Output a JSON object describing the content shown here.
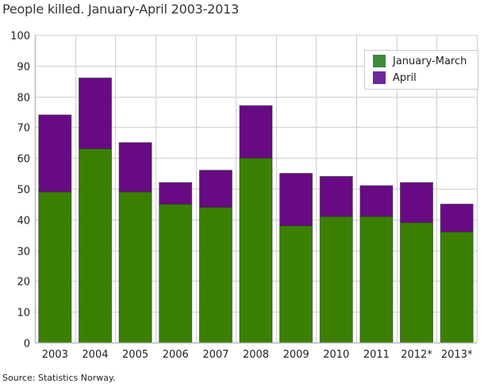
{
  "title": "People killed. January-April 2003-2013",
  "source": "Source: Statistics Norway.",
  "colors": {
    "jan_mar": "#3b8003",
    "april": "#690a85",
    "legend_jan_mar": "#3c8c3c",
    "legend_april": "#6a2a9a",
    "grid": "#d0d0d0"
  },
  "legend": [
    {
      "label": "January-March",
      "color": "#3c8c3c"
    },
    {
      "label": "April",
      "color": "#6a2a9a"
    }
  ],
  "chart_data": {
    "type": "bar",
    "stacked": true,
    "title": "People killed. January-April 2003-2013",
    "xlabel": "",
    "ylabel": "",
    "ylim": [
      0,
      100
    ],
    "yticks": [
      0,
      10,
      20,
      30,
      40,
      50,
      60,
      70,
      80,
      90,
      100
    ],
    "grid": true,
    "legend_position": "top-right",
    "categories": [
      "2003",
      "2004",
      "2005",
      "2006",
      "2007",
      "2008",
      "2009",
      "2010",
      "2011",
      "2012*",
      "2013*"
    ],
    "series": [
      {
        "name": "January-March",
        "values": [
          49,
          63,
          49,
          45,
          44,
          60,
          38,
          41,
          41,
          39,
          36
        ]
      },
      {
        "name": "April",
        "values": [
          25,
          23,
          16,
          7,
          12,
          17,
          17,
          13,
          10,
          13,
          9
        ]
      }
    ],
    "totals": [
      74,
      86,
      65,
      52,
      56,
      77,
      55,
      54,
      51,
      52,
      45
    ]
  }
}
